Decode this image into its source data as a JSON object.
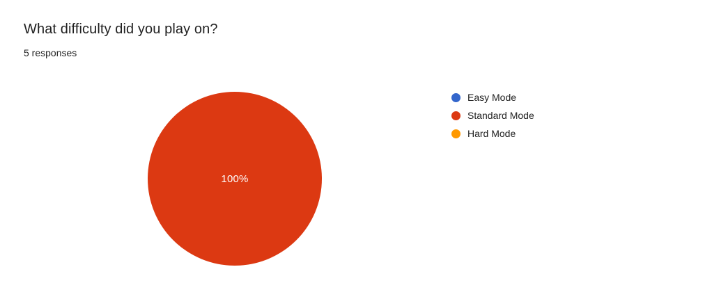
{
  "header": {
    "title": "What difficulty did you play on?",
    "responses_label": "5 responses"
  },
  "chart_data": {
    "type": "pie",
    "title": "What difficulty did you play on?",
    "subtitle": "5 responses",
    "total_responses": 5,
    "categories": [
      "Easy Mode",
      "Standard Mode",
      "Hard Mode"
    ],
    "values": [
      0,
      5,
      0
    ],
    "percentages": [
      0,
      100,
      0
    ],
    "colors": [
      "#3366CC",
      "#DC3912",
      "#FF9900"
    ],
    "visible_slice_label": "100%",
    "visible_slice_category": "Standard Mode",
    "legend_position": "right",
    "label_color": "#ffffff"
  },
  "legend": {
    "items": [
      {
        "label": "Easy Mode",
        "color": "#3366CC"
      },
      {
        "label": "Standard Mode",
        "color": "#DC3912"
      },
      {
        "label": "Hard Mode",
        "color": "#FF9900"
      }
    ]
  }
}
